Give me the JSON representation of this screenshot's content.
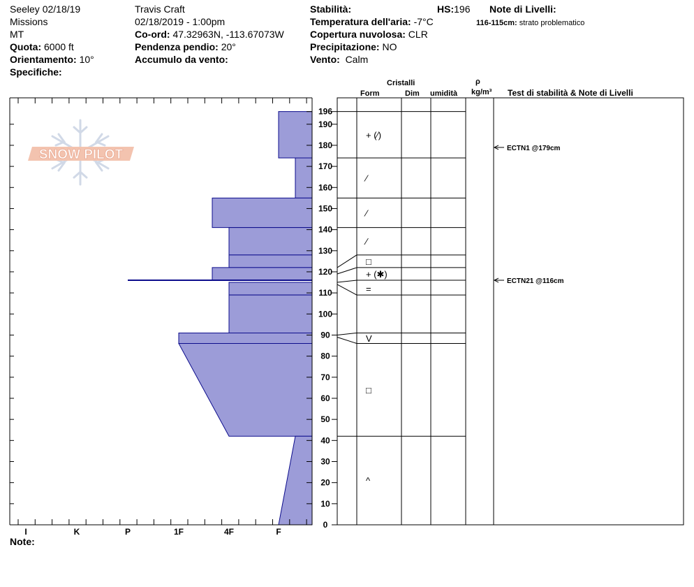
{
  "header": {
    "col1": {
      "site": "Seeley 02/18/19",
      "range": "Missions",
      "state": "MT",
      "elev_label": "Quota:",
      "elev_value": "6000 ft",
      "aspect_label": "Orientamento:",
      "aspect_value": "10°",
      "specifics_label": "Specifiche:"
    },
    "col2": {
      "observer": "Travis  Craft",
      "datetime": "02/18/2019 - 1:00pm",
      "coord_label": "Co-ord:",
      "coord_value": "47.32963N, -113.67073W",
      "slope_label": "Pendenza pendio:",
      "slope_value": "20°",
      "wind_load_label": "Accumulo da vento:"
    },
    "col3": {
      "stability_label": "Stabilità:",
      "air_temp_label": "Temperatura dell'aria:",
      "air_temp_value": "-7°C",
      "sky_label": "Copertura nuvolosa:",
      "sky_value": "CLR",
      "precip_label": "Precipitazione:",
      "precip_value": "NO",
      "wind_label": "Vento:",
      "wind_value": "Calm"
    },
    "hs_label": "HS:",
    "hs_value": "196",
    "layer_notes_title": "Note di Livelli:",
    "layer_note_range": "116-115cm:",
    "layer_note_text": "strato problematico"
  },
  "table": {
    "crystals_label": "Cristalli",
    "form_label": "Form",
    "size_label": "Dim",
    "moisture_label": "umidità",
    "rho_label": "ρ",
    "density_unit": "kg/m³",
    "stability_notes_label": "Test di stabilità & Note di Livelli"
  },
  "logo_text": "SNOW PILOT",
  "footer": {
    "notes_label": "Note:"
  },
  "colors": {
    "hardness_fill": "#9c9cd8",
    "hardness_stroke": "#0c0c8c",
    "grid": "#000000"
  },
  "chart_data": {
    "type": "area",
    "title": "",
    "xlabel": "",
    "ylabel": "",
    "hardness_categories": [
      "I",
      "K",
      "P",
      "1F",
      "4F",
      "F"
    ],
    "y_ticks": [
      196,
      190,
      180,
      170,
      160,
      150,
      140,
      130,
      120,
      110,
      100,
      90,
      80,
      70,
      60,
      50,
      40,
      30,
      20,
      10,
      0
    ],
    "ylim": [
      0,
      196
    ],
    "layers": [
      {
        "top": 196,
        "bottom": 174,
        "hardness_top": "F",
        "hardness_bottom": "F",
        "form": "+ (⁄)"
      },
      {
        "top": 174,
        "bottom": 155,
        "hardness_top": "F+",
        "hardness_bottom": "F+",
        "form": "⁄"
      },
      {
        "top": 155,
        "bottom": 141,
        "hardness_top": "4F-",
        "hardness_bottom": "4F-",
        "form": "⁄"
      },
      {
        "top": 141,
        "bottom": 128,
        "hardness_top": "4F",
        "hardness_bottom": "4F",
        "form": "⁄"
      },
      {
        "top": 128,
        "bottom": 122,
        "hardness_top": "4F",
        "hardness_bottom": "4F",
        "form": "□"
      },
      {
        "top": 122,
        "bottom": 116,
        "hardness_top": "4F-",
        "hardness_bottom": "4F-",
        "form": "+ (✱)"
      },
      {
        "top": 116,
        "bottom": 115,
        "hardness_top": "P",
        "hardness_bottom": "P",
        "form": ""
      },
      {
        "top": 115,
        "bottom": 109,
        "hardness_top": "4F",
        "hardness_bottom": "4F",
        "form": "="
      },
      {
        "top": 109,
        "bottom": 91,
        "hardness_top": "4F",
        "hardness_bottom": "4F",
        "form": ""
      },
      {
        "top": 91,
        "bottom": 86,
        "hardness_top": "1F",
        "hardness_bottom": "1F",
        "form": "V"
      },
      {
        "top": 86,
        "bottom": 42,
        "hardness_top": "1F",
        "hardness_bottom": "4F",
        "form": "□"
      },
      {
        "top": 42,
        "bottom": 0,
        "hardness_top": "F+",
        "hardness_bottom": "F",
        "form": "^"
      }
    ],
    "stability_tests": [
      {
        "depth": 179,
        "label": "ECTN1 @179cm"
      },
      {
        "depth": 116,
        "label": "ECTN21 @116cm"
      }
    ]
  }
}
